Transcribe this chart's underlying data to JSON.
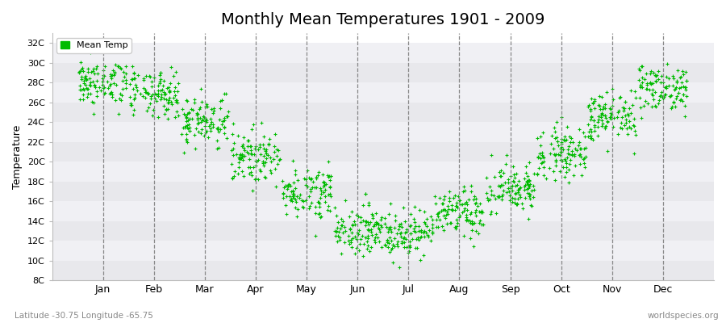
{
  "title": "Monthly Mean Temperatures 1901 - 2009",
  "ylabel": "Temperature",
  "xlabel_bottom": "Latitude -30.75 Longitude -65.75",
  "credit": "worldspecies.org",
  "legend_label": "Mean Temp",
  "dot_color": "#00bb00",
  "dot_size": 5,
  "ylim_min": 8,
  "ylim_max": 33,
  "ytick_labels": [
    "8C",
    "10C",
    "12C",
    "14C",
    "16C",
    "18C",
    "20C",
    "22C",
    "24C",
    "26C",
    "28C",
    "30C",
    "32C"
  ],
  "ytick_values": [
    8,
    10,
    12,
    14,
    16,
    18,
    20,
    22,
    24,
    26,
    28,
    30,
    32
  ],
  "month_labels": [
    "Jan",
    "Feb",
    "Mar",
    "Apr",
    "May",
    "Jun",
    "Jul",
    "Aug",
    "Sep",
    "Oct",
    "Nov",
    "Dec"
  ],
  "bg_band_colors": [
    "#e8e8ec",
    "#f0f0f4"
  ],
  "title_fontsize": 14,
  "monthly_means": [
    28.0,
    26.8,
    24.2,
    20.5,
    17.0,
    13.2,
    12.8,
    14.8,
    17.2,
    21.0,
    24.5,
    27.5
  ],
  "monthly_stds": [
    1.2,
    1.2,
    1.3,
    1.3,
    1.3,
    1.2,
    1.2,
    1.2,
    1.3,
    1.3,
    1.3,
    1.2
  ],
  "years": 109,
  "xlim_min": -0.5,
  "xlim_max": 12.5
}
